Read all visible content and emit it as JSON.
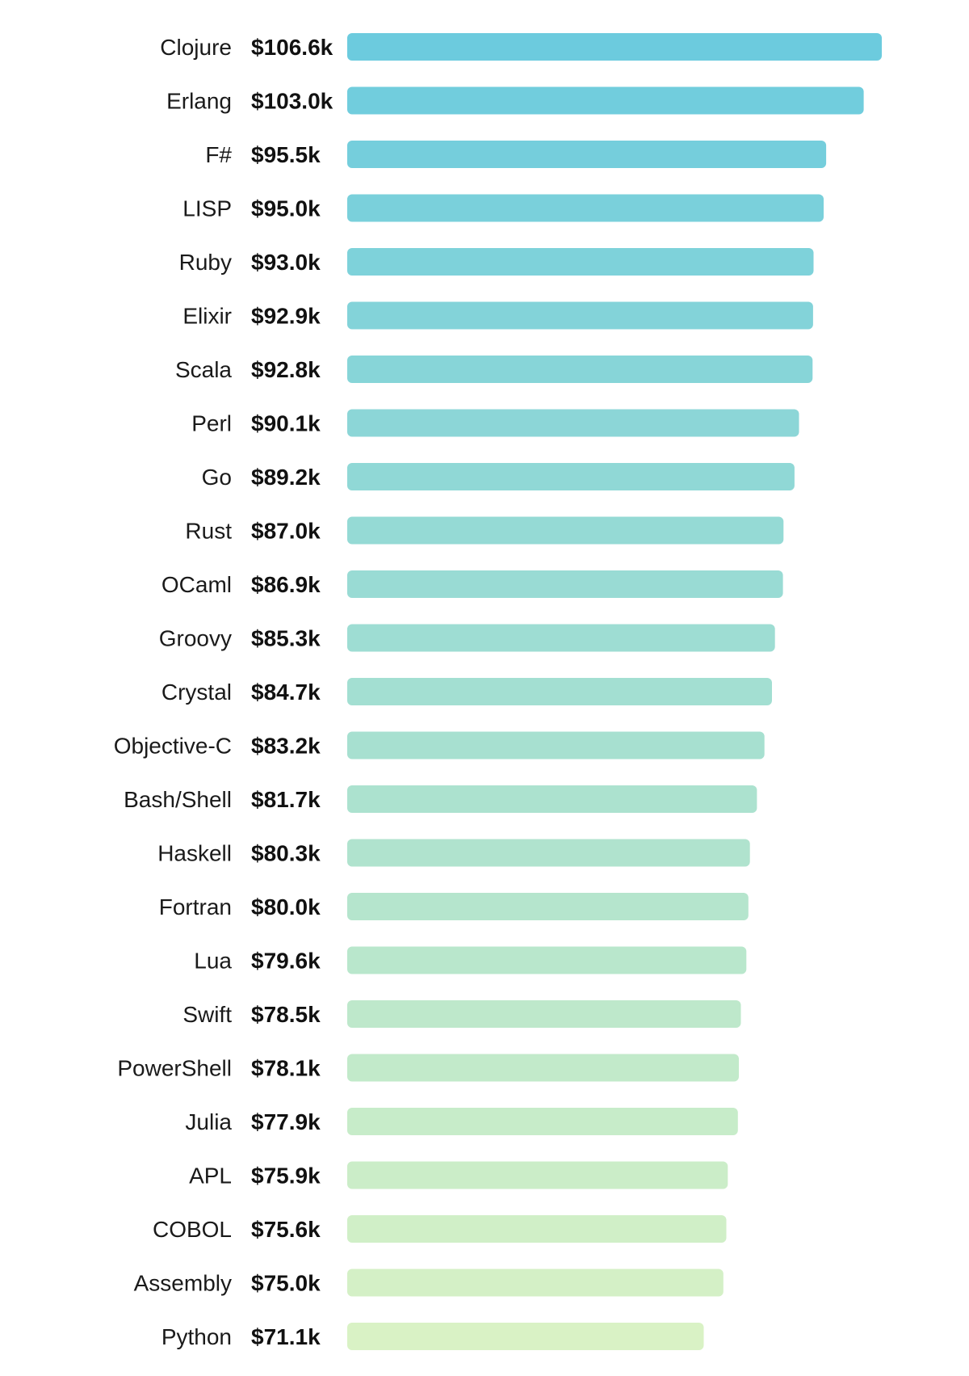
{
  "chart_data": {
    "type": "bar",
    "orientation": "horizontal",
    "categories": [
      "Clojure",
      "Erlang",
      "F#",
      "LISP",
      "Ruby",
      "Elixir",
      "Scala",
      "Perl",
      "Go",
      "Rust",
      "OCaml",
      "Groovy",
      "Crystal",
      "Objective-C",
      "Bash/Shell",
      "Haskell",
      "Fortran",
      "Lua",
      "Swift",
      "PowerShell",
      "Julia",
      "APL",
      "COBOL",
      "Assembly",
      "Python"
    ],
    "values": [
      106.6,
      103.0,
      95.5,
      95.0,
      93.0,
      92.9,
      92.8,
      90.1,
      89.2,
      87.0,
      86.9,
      85.3,
      84.7,
      83.2,
      81.7,
      80.3,
      80.0,
      79.6,
      78.5,
      78.1,
      77.9,
      75.9,
      75.6,
      75.0,
      71.1
    ],
    "value_labels": [
      "$106.6k",
      "$103.0k",
      "$95.5k",
      "$95.0k",
      "$93.0k",
      "$92.9k",
      "$92.8k",
      "$90.1k",
      "$89.2k",
      "$87.0k",
      "$86.9k",
      "$85.3k",
      "$84.7k",
      "$83.2k",
      "$81.7k",
      "$80.3k",
      "$80.0k",
      "$79.6k",
      "$78.5k",
      "$78.1k",
      "$77.9k",
      "$75.9k",
      "$75.6k",
      "$75.0k",
      "$71.1k"
    ],
    "title": "",
    "xlabel": "",
    "ylabel": "",
    "grid": false,
    "legend": "none",
    "colors": {
      "gradient_start": "#6CCBDE",
      "gradient_end": "#D9F2C5"
    }
  }
}
